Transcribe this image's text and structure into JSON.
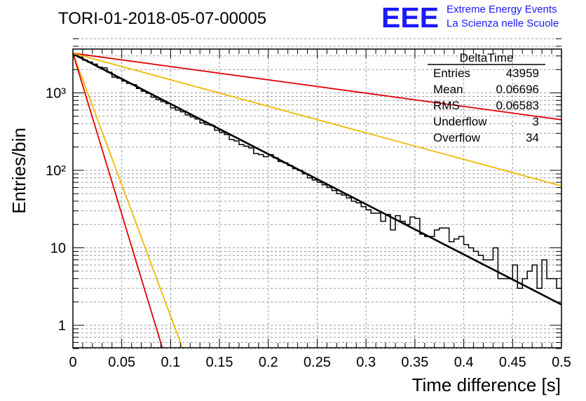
{
  "header": {
    "run_title": "TORI-01-2018-05-07-00005",
    "logo_text": "EEE",
    "project_line1": "Extreme Energy Events",
    "project_line2": "La Scienza nelle Scuole"
  },
  "stats": {
    "title": "DeltaTime",
    "rows": [
      {
        "label": "Entries",
        "value": "43959"
      },
      {
        "label": "Mean",
        "value": "0.06696"
      },
      {
        "label": "RMS",
        "value": "0.06583"
      },
      {
        "label": "Underflow",
        "value": "3"
      },
      {
        "label": "Overflow",
        "value": "34"
      }
    ]
  },
  "colors": {
    "histogram": "#000000",
    "fit": "#000000",
    "red_curves": "#e00000",
    "yellow_curves": "#f0b800",
    "grid": "#9a9a9a",
    "logo": "#1a1aff"
  },
  "chart_data": {
    "type": "line",
    "title": "TORI-01-2018-05-07-00005",
    "xlabel": "Time difference [s]",
    "ylabel": "Entries/bin",
    "xlim": [
      0,
      0.5
    ],
    "ylim": [
      0.5,
      5500
    ],
    "log_y": true,
    "grid": true,
    "legend": "none",
    "x_ticks": [
      "0",
      "0.05",
      "0.1",
      "0.15",
      "0.2",
      "0.25",
      "0.3",
      "0.35",
      "0.4",
      "0.45",
      "0.5"
    ],
    "y_ticks": [
      "1",
      "10",
      "10²",
      "10³"
    ],
    "histogram": {
      "bin_width": 0.005,
      "values": [
        3100,
        2900,
        2650,
        2500,
        2350,
        2150,
        2100,
        1850,
        1600,
        1550,
        1420,
        1330,
        1280,
        1140,
        1050,
        990,
        880,
        820,
        770,
        730,
        640,
        600,
        570,
        520,
        490,
        460,
        410,
        390,
        380,
        330,
        310,
        290,
        250,
        240,
        215,
        205,
        195,
        165,
        160,
        150,
        160,
        145,
        130,
        125,
        115,
        105,
        100,
        90,
        80,
        75,
        70,
        65,
        60,
        55,
        50,
        48,
        44,
        40,
        38,
        34,
        31,
        28,
        28,
        22,
        27,
        17,
        26,
        22,
        20,
        25,
        24,
        15,
        14,
        14,
        17,
        18,
        18,
        12,
        13,
        14,
        11,
        10,
        9,
        8,
        7,
        7,
        10,
        4,
        4,
        4,
        6,
        3,
        4,
        5,
        6,
        3,
        7,
        4,
        4,
        3
      ]
    },
    "series": [
      {
        "color": "black",
        "x": [
          0,
          0.5
        ],
        "y": [
          3200,
          1.85
        ]
      },
      {
        "color": "red",
        "x": [
          0,
          0.5
        ],
        "y": [
          3250,
          450
        ]
      },
      {
        "color": "yellow",
        "x": [
          0,
          0.5
        ],
        "y": [
          3250,
          63
        ]
      },
      {
        "color": "yellow",
        "x": [
          0,
          0.112
        ],
        "y": [
          3250,
          0.5
        ]
      },
      {
        "color": "red",
        "x": [
          0,
          0.0915
        ],
        "y": [
          3250,
          0.5
        ]
      }
    ]
  }
}
